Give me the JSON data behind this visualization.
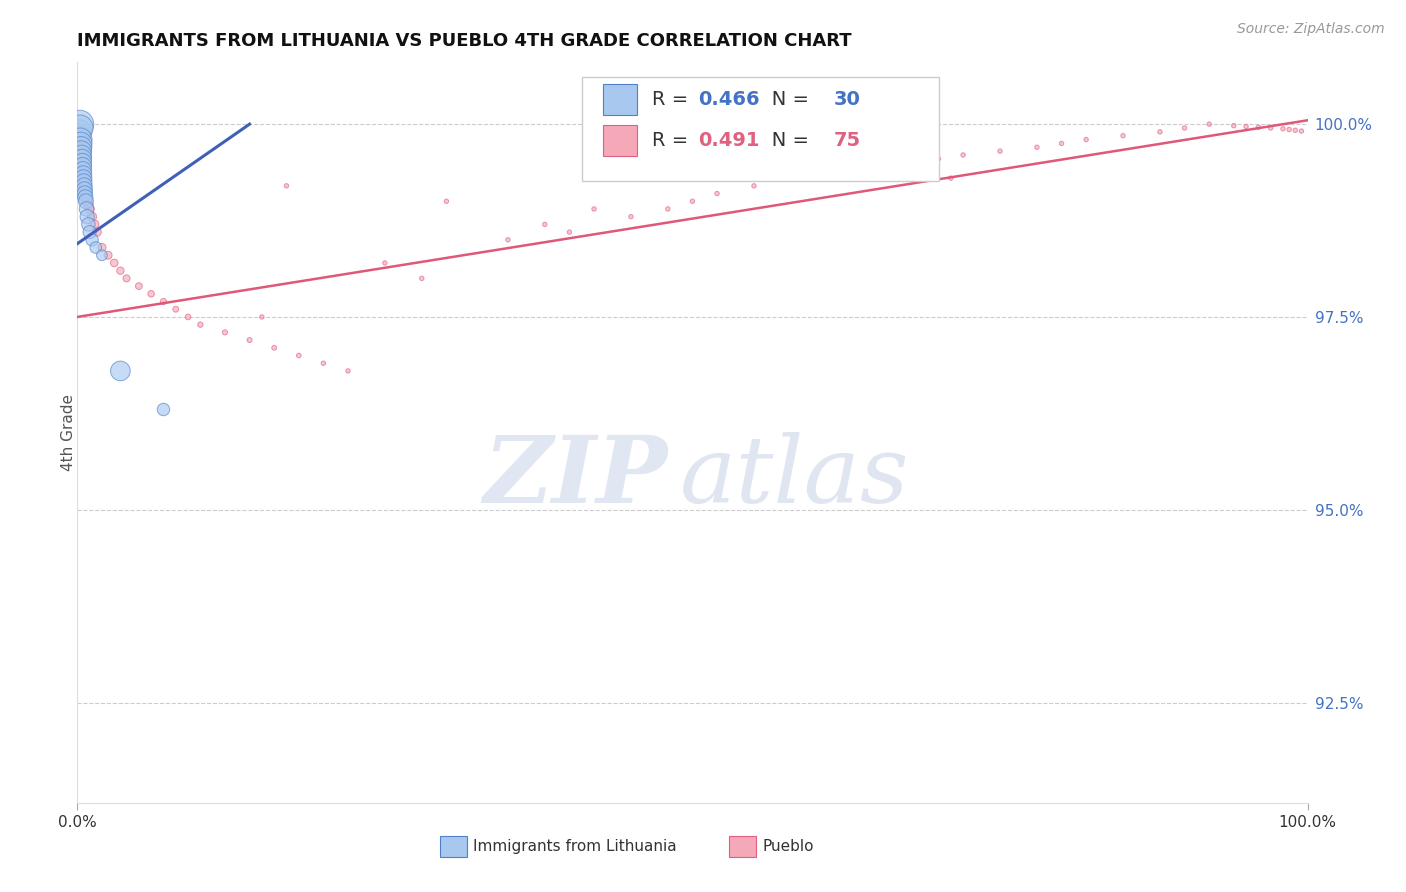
{
  "title": "IMMIGRANTS FROM LITHUANIA VS PUEBLO 4TH GRADE CORRELATION CHART",
  "source_text": "Source: ZipAtlas.com",
  "ylabel": "4th Grade",
  "yticks": [
    92.5,
    95.0,
    97.5,
    100.0
  ],
  "ytick_labels": [
    "92.5%",
    "95.0%",
    "97.5%",
    "100.0%"
  ],
  "xmin": 0.0,
  "xmax": 100.0,
  "ymin": 91.2,
  "ymax": 100.8,
  "legend_label1": "Immigrants from Lithuania",
  "legend_label2": "Pueblo",
  "R1": "0.466",
  "N1": "30",
  "R2": "0.491",
  "N2": "75",
  "color_blue_fill": "#A8C8F0",
  "color_pink_fill": "#F4A8B8",
  "color_blue_edge": "#5080C8",
  "color_pink_edge": "#E06080",
  "color_blue_line": "#4060B8",
  "color_pink_line": "#E05878",
  "color_blue_text": "#4472C4",
  "color_pink_text": "#E06080",
  "watermark_zip": "ZIP",
  "watermark_atlas": "atlas",
  "blue_trend_x": [
    0,
    14
  ],
  "blue_trend_y": [
    98.45,
    100.0
  ],
  "pink_trend_x": [
    0,
    100
  ],
  "pink_trend_y": [
    97.5,
    100.05
  ],
  "blue_x": [
    0.15,
    0.18,
    0.2,
    0.22,
    0.25,
    0.28,
    0.3,
    0.32,
    0.35,
    0.38,
    0.4,
    0.42,
    0.45,
    0.48,
    0.5,
    0.52,
    0.55,
    0.58,
    0.6,
    0.65,
    0.7,
    0.75,
    0.8,
    0.9,
    1.0,
    1.2,
    1.5,
    2.0,
    3.5,
    7.0
  ],
  "blue_y": [
    99.85,
    99.9,
    100.0,
    99.95,
    99.8,
    99.75,
    99.7,
    99.65,
    99.6,
    99.55,
    99.5,
    99.45,
    99.4,
    99.35,
    99.3,
    99.25,
    99.2,
    99.15,
    99.1,
    99.05,
    99.0,
    98.9,
    98.8,
    98.7,
    98.6,
    98.5,
    98.4,
    98.3,
    96.8,
    96.3
  ],
  "blue_s": [
    250,
    300,
    400,
    350,
    280,
    260,
    240,
    220,
    200,
    190,
    180,
    170,
    160,
    150,
    145,
    140,
    135,
    130,
    125,
    120,
    115,
    110,
    105,
    95,
    90,
    80,
    70,
    60,
    200,
    80
  ],
  "pink_x": [
    0.1,
    0.15,
    0.2,
    0.25,
    0.3,
    0.35,
    0.4,
    0.45,
    0.5,
    0.55,
    0.6,
    0.65,
    0.7,
    0.8,
    0.9,
    1.0,
    1.2,
    1.4,
    1.6,
    2.0,
    2.5,
    3.0,
    3.5,
    4.0,
    5.0,
    6.0,
    7.0,
    8.0,
    9.0,
    10.0,
    12.0,
    14.0,
    16.0,
    18.0,
    20.0,
    22.0,
    25.0,
    28.0,
    30.0,
    35.0,
    38.0,
    40.0,
    45.0,
    48.0,
    50.0,
    52.0,
    55.0,
    58.0,
    60.0,
    62.0,
    65.0,
    68.0,
    70.0,
    72.0,
    75.0,
    78.0,
    80.0,
    82.0,
    85.0,
    88.0,
    90.0,
    92.0,
    94.0,
    95.0,
    96.0,
    97.0,
    98.0,
    98.5,
    99.0,
    99.5,
    15.0,
    17.0,
    42.0,
    63.0,
    71.0
  ],
  "pink_y": [
    99.7,
    99.6,
    99.5,
    99.55,
    99.4,
    99.35,
    99.3,
    99.45,
    99.25,
    99.2,
    99.15,
    99.1,
    99.05,
    99.0,
    98.95,
    98.9,
    98.8,
    98.7,
    98.6,
    98.4,
    98.3,
    98.2,
    98.1,
    98.0,
    97.9,
    97.8,
    97.7,
    97.6,
    97.5,
    97.4,
    97.3,
    97.2,
    97.1,
    97.0,
    96.9,
    96.8,
    98.2,
    98.0,
    99.0,
    98.5,
    98.7,
    98.6,
    98.8,
    98.9,
    99.0,
    99.1,
    99.2,
    99.3,
    99.4,
    99.35,
    99.45,
    99.5,
    99.55,
    99.6,
    99.65,
    99.7,
    99.75,
    99.8,
    99.85,
    99.9,
    99.95,
    100.0,
    99.98,
    99.97,
    99.96,
    99.95,
    99.94,
    99.93,
    99.92,
    99.91,
    97.5,
    99.2,
    98.9,
    99.7,
    99.3
  ],
  "pink_s": [
    120,
    110,
    105,
    100,
    95,
    90,
    85,
    80,
    75,
    70,
    65,
    60,
    55,
    50,
    48,
    45,
    42,
    40,
    38,
    35,
    33,
    30,
    28,
    26,
    24,
    22,
    20,
    18,
    16,
    15,
    14,
    13,
    12,
    11,
    10,
    10,
    10,
    10,
    10,
    10,
    10,
    10,
    10,
    10,
    10,
    10,
    10,
    10,
    10,
    10,
    10,
    10,
    10,
    10,
    10,
    10,
    10,
    10,
    10,
    10,
    10,
    10,
    10,
    10,
    10,
    10,
    10,
    10,
    10,
    10,
    10,
    10,
    10,
    10,
    10
  ]
}
